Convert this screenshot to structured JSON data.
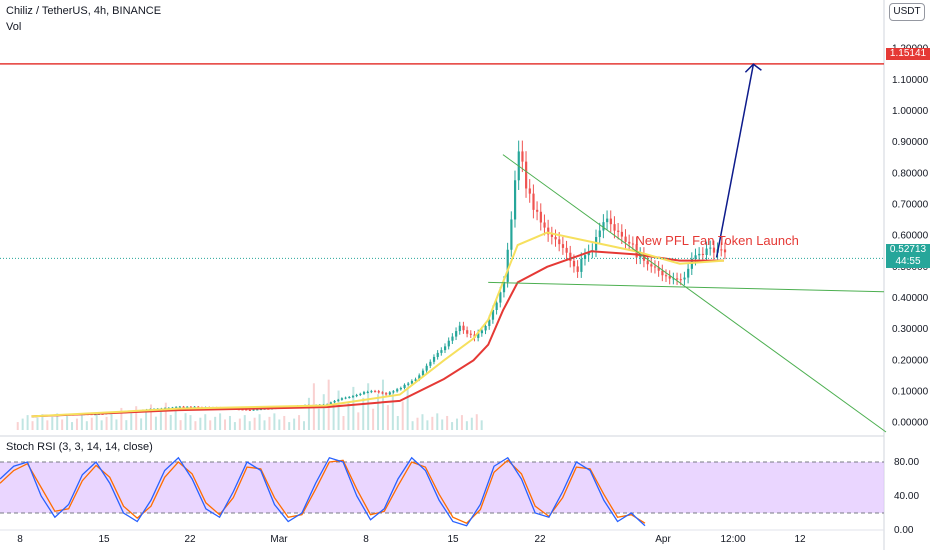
{
  "header": {
    "symbol_line": "Chiliz / TetherUS, 4h, BINANCE",
    "vol_label": "Vol",
    "currency_button": "USDT"
  },
  "chart_data": {
    "type": "line",
    "title": "Chiliz / TetherUS, 4h, BINANCE",
    "price_axis": {
      "ticks": [
        "1.20000",
        "1.10000",
        "1.00000",
        "0.90000",
        "0.80000",
        "0.70000",
        "0.60000",
        "0.50000",
        "0.40000",
        "0.30000",
        "0.20000",
        "0.10000",
        "0.00000"
      ],
      "ylim": [
        -0.03,
        1.26
      ]
    },
    "time_axis": {
      "ticks": [
        "8",
        "15",
        "22",
        "Mar",
        "8",
        "15",
        "22",
        "Apr",
        "12:00",
        "12"
      ]
    },
    "price_series": {
      "name": "CHZ/USDT",
      "x": [
        0,
        5,
        10,
        15,
        20,
        25,
        30,
        35,
        40,
        42,
        44,
        46,
        48,
        50,
        52,
        54,
        56,
        58,
        60,
        62,
        64,
        66,
        68,
        70,
        72,
        74,
        76,
        78,
        80,
        82,
        84,
        86,
        88,
        90,
        92,
        94
      ],
      "values": [
        0.02,
        0.025,
        0.03,
        0.04,
        0.05,
        0.05,
        0.04,
        0.05,
        0.06,
        0.08,
        0.09,
        0.1,
        0.09,
        0.11,
        0.14,
        0.2,
        0.25,
        0.32,
        0.27,
        0.32,
        0.45,
        0.85,
        0.7,
        0.62,
        0.58,
        0.5,
        0.55,
        0.65,
        0.58,
        0.55,
        0.52,
        0.48,
        0.47,
        0.52,
        0.55,
        0.53
      ]
    },
    "ema_fast": {
      "x": [
        0,
        20,
        40,
        50,
        56,
        60,
        62,
        64,
        66,
        70,
        76,
        82,
        88,
        94
      ],
      "values": [
        0.02,
        0.045,
        0.055,
        0.09,
        0.2,
        0.27,
        0.33,
        0.45,
        0.57,
        0.61,
        0.58,
        0.55,
        0.51,
        0.52
      ]
    },
    "ema_slow": {
      "x": [
        0,
        20,
        40,
        50,
        56,
        60,
        62,
        64,
        66,
        70,
        76,
        82,
        88,
        94
      ],
      "values": [
        0.02,
        0.04,
        0.05,
        0.07,
        0.14,
        0.2,
        0.25,
        0.36,
        0.45,
        0.5,
        0.55,
        0.54,
        0.52,
        0.52
      ]
    },
    "current_price": "0.52713",
    "countdown": "44:55",
    "target_price": "1.15141",
    "annotation": "New PFL Fan Token Launch",
    "stoch_rsi": {
      "label": "Stoch RSI (3, 3, 14, 14, close)",
      "ticks": [
        "80.00",
        "40.00",
        "0.00"
      ],
      "upper_band": 80,
      "lower_band": 20,
      "k_values": [
        60,
        75,
        80,
        40,
        15,
        30,
        65,
        80,
        55,
        20,
        10,
        35,
        70,
        85,
        60,
        25,
        15,
        45,
        80,
        70,
        30,
        10,
        20,
        55,
        85,
        80,
        40,
        12,
        25,
        60,
        85,
        70,
        35,
        10,
        5,
        30,
        75,
        85,
        60,
        20,
        15,
        45,
        80,
        70,
        35,
        10,
        20,
        5
      ],
      "d_values": [
        55,
        70,
        78,
        50,
        22,
        25,
        58,
        76,
        62,
        28,
        14,
        28,
        62,
        80,
        66,
        32,
        18,
        38,
        74,
        72,
        38,
        15,
        18,
        48,
        80,
        82,
        48,
        18,
        22,
        52,
        80,
        74,
        42,
        15,
        8,
        24,
        68,
        82,
        66,
        28,
        16,
        38,
        74,
        72,
        42,
        15,
        18,
        8
      ]
    },
    "colors": {
      "up": "#26a69a",
      "down": "#ef5350",
      "ema_fast": "#f6e05e",
      "ema_slow": "#e53935",
      "trend": "#4caf50",
      "arrow": "#0d1b8c",
      "target_line": "#e53935",
      "stoch_k": "#2962ff",
      "stoch_d": "#ff6d00",
      "stoch_band": "#e1c4ff"
    }
  }
}
